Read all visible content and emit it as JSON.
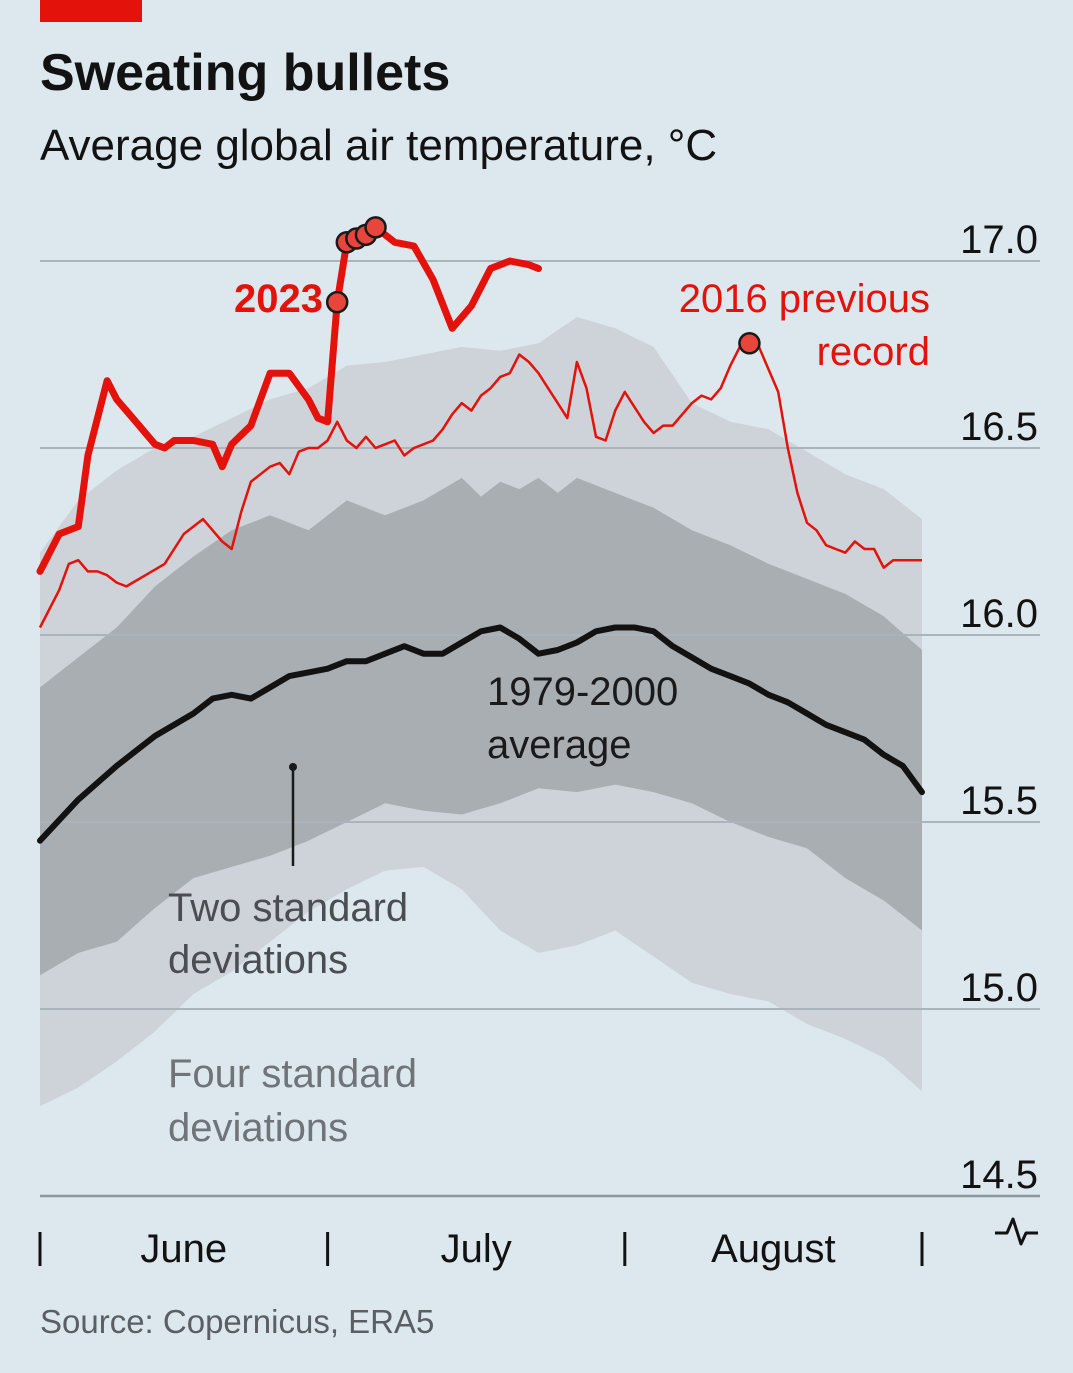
{
  "title": "Sweating bullets",
  "subtitle": "Average global air temperature, °C",
  "source": "Source: Copernicus, ERA5",
  "colors": {
    "background": "#dde7ee",
    "accent_red": "#e3120b",
    "band_4sd": "#cdd3d8",
    "band_2sd": "#a9aeb2",
    "average": "#121212"
  },
  "chart_data": {
    "type": "line",
    "ylim": [
      14.5,
      17.0
    ],
    "yticks": [
      "17.0",
      "16.5",
      "16.0",
      "15.5",
      "15.0",
      "14.5"
    ],
    "x_unit": "days from 1 June",
    "xlim": [
      0,
      92
    ],
    "months": [
      {
        "name": "June",
        "start": 0,
        "end": 30
      },
      {
        "name": "July",
        "start": 30,
        "end": 61
      },
      {
        "name": "August",
        "start": 61,
        "end": 92
      }
    ],
    "labels": {
      "y2023": "2023",
      "y2016_line1": "2016 previous",
      "y2016_line2": "record",
      "avg_line1": "1979-2000",
      "avg_line2": "average",
      "band2_line1": "Two standard",
      "band2_line2": "deviations",
      "band4_line1": "Four standard",
      "band4_line2": "deviations"
    },
    "series": [
      {
        "name": "2023",
        "color": "#e3120b",
        "x": [
          0,
          2,
          4,
          5,
          7,
          8,
          10,
          12,
          13,
          14,
          16,
          18,
          19,
          20,
          22,
          24,
          26,
          28,
          29,
          30,
          31,
          32,
          33,
          34,
          35,
          37,
          39,
          41,
          43,
          45,
          47,
          49,
          51,
          52
        ],
        "y": [
          16.17,
          16.27,
          16.29,
          16.48,
          16.68,
          16.63,
          16.57,
          16.51,
          16.5,
          16.52,
          16.52,
          16.51,
          16.45,
          16.51,
          16.56,
          16.7,
          16.7,
          16.63,
          16.58,
          16.57,
          16.89,
          17.05,
          17.06,
          17.07,
          17.09,
          17.05,
          17.04,
          16.95,
          16.82,
          16.88,
          16.98,
          17.0,
          16.99,
          16.98
        ]
      },
      {
        "name": "2016",
        "color": "#e3120b",
        "x": [
          0,
          2,
          3,
          4,
          5,
          6,
          7,
          8,
          9,
          11,
          13,
          15,
          17,
          19,
          20,
          21,
          22,
          24,
          25,
          26,
          27,
          28,
          29,
          30,
          31,
          32,
          33,
          34,
          35,
          36,
          37,
          38,
          39,
          40,
          41,
          42,
          43,
          44,
          45,
          46,
          47,
          48,
          49,
          50,
          51,
          52,
          53,
          54,
          55,
          56,
          57,
          58,
          59,
          60,
          61,
          62,
          63,
          64,
          65,
          66,
          67,
          68,
          69,
          70,
          71,
          72,
          73,
          74,
          75,
          76,
          77,
          78,
          79,
          80,
          81,
          82,
          83,
          84,
          85,
          86,
          87,
          88,
          89,
          90,
          91,
          92
        ],
        "y": [
          16.02,
          16.12,
          16.19,
          16.2,
          16.17,
          16.17,
          16.16,
          16.14,
          16.13,
          16.16,
          16.19,
          16.27,
          16.31,
          16.25,
          16.23,
          16.33,
          16.41,
          16.45,
          16.46,
          16.43,
          16.49,
          16.5,
          16.5,
          16.52,
          16.57,
          16.52,
          16.5,
          16.53,
          16.5,
          16.51,
          16.52,
          16.48,
          16.5,
          16.51,
          16.52,
          16.55,
          16.59,
          16.62,
          16.6,
          16.64,
          16.66,
          16.69,
          16.7,
          16.75,
          16.73,
          16.7,
          16.66,
          16.62,
          16.58,
          16.73,
          16.66,
          16.53,
          16.52,
          16.6,
          16.65,
          16.61,
          16.57,
          16.54,
          16.56,
          16.56,
          16.59,
          16.62,
          16.64,
          16.63,
          16.66,
          16.72,
          16.77,
          16.78,
          16.77,
          16.71,
          16.65,
          16.5,
          16.38,
          16.3,
          16.28,
          16.24,
          16.23,
          16.22,
          16.25,
          16.23,
          16.23,
          16.18,
          16.2,
          16.2,
          16.2,
          16.2
        ]
      },
      {
        "name": "1979-2000 average",
        "color": "#121212",
        "x": [
          0,
          4,
          8,
          12,
          16,
          18,
          20,
          22,
          24,
          26,
          28,
          30,
          32,
          34,
          36,
          38,
          40,
          42,
          44,
          46,
          48,
          50,
          52,
          54,
          56,
          58,
          60,
          62,
          64,
          66,
          68,
          70,
          72,
          74,
          76,
          78,
          80,
          82,
          84,
          86,
          88,
          90,
          92
        ],
        "y": [
          15.45,
          15.56,
          15.65,
          15.73,
          15.79,
          15.83,
          15.84,
          15.83,
          15.86,
          15.89,
          15.9,
          15.91,
          15.93,
          15.93,
          15.95,
          15.97,
          15.95,
          15.95,
          15.98,
          16.01,
          16.02,
          15.99,
          15.95,
          15.96,
          15.98,
          16.01,
          16.02,
          16.02,
          16.01,
          15.97,
          15.94,
          15.91,
          15.89,
          15.87,
          15.84,
          15.82,
          15.79,
          15.76,
          15.74,
          15.72,
          15.68,
          15.65,
          15.58
        ]
      },
      {
        "name": "+2 SD",
        "x": [
          0,
          4,
          8,
          12,
          16,
          20,
          24,
          28,
          32,
          36,
          40,
          44,
          46,
          48,
          50,
          52,
          54,
          56,
          60,
          64,
          68,
          72,
          76,
          80,
          84,
          88,
          92
        ],
        "y": [
          15.86,
          15.94,
          16.02,
          16.13,
          16.21,
          16.28,
          16.32,
          16.28,
          16.36,
          16.32,
          16.36,
          16.42,
          16.37,
          16.41,
          16.39,
          16.42,
          16.38,
          16.42,
          16.38,
          16.34,
          16.28,
          16.24,
          16.19,
          16.15,
          16.11,
          16.05,
          15.96
        ]
      },
      {
        "name": "-2 SD",
        "x": [
          0,
          4,
          8,
          12,
          16,
          20,
          24,
          28,
          32,
          36,
          40,
          44,
          48,
          52,
          56,
          60,
          64,
          68,
          72,
          76,
          80,
          84,
          88,
          92
        ],
        "y": [
          15.09,
          15.15,
          15.18,
          15.27,
          15.35,
          15.38,
          15.41,
          15.45,
          15.5,
          15.55,
          15.53,
          15.52,
          15.55,
          15.59,
          15.58,
          15.6,
          15.58,
          15.55,
          15.5,
          15.46,
          15.43,
          15.35,
          15.29,
          15.21
        ]
      },
      {
        "name": "+4 SD",
        "x": [
          0,
          4,
          8,
          12,
          16,
          20,
          24,
          28,
          32,
          36,
          40,
          44,
          48,
          52,
          56,
          60,
          64,
          68,
          72,
          76,
          80,
          84,
          88,
          92
        ],
        "y": [
          16.22,
          16.36,
          16.44,
          16.5,
          16.53,
          16.58,
          16.63,
          16.66,
          16.72,
          16.73,
          16.75,
          16.77,
          16.76,
          16.78,
          16.85,
          16.82,
          16.77,
          16.62,
          16.57,
          16.55,
          16.49,
          16.43,
          16.39,
          16.31
        ]
      },
      {
        "name": "-4 SD",
        "x": [
          0,
          4,
          8,
          12,
          16,
          20,
          24,
          28,
          32,
          36,
          40,
          44,
          48,
          52,
          56,
          60,
          64,
          68,
          72,
          76,
          80,
          84,
          88,
          92
        ],
        "y": [
          14.74,
          14.79,
          14.86,
          14.94,
          15.04,
          15.1,
          15.18,
          15.26,
          15.32,
          15.37,
          15.38,
          15.32,
          15.21,
          15.15,
          15.17,
          15.21,
          15.14,
          15.07,
          15.04,
          15.02,
          14.96,
          14.92,
          14.87,
          14.78
        ]
      }
    ],
    "markers_2023": [
      [
        31,
        16.89
      ],
      [
        32,
        17.05
      ],
      [
        33,
        17.06
      ],
      [
        34,
        17.07
      ],
      [
        35,
        17.09
      ]
    ],
    "marker_2016": [
      [
        74,
        16.78
      ]
    ]
  }
}
